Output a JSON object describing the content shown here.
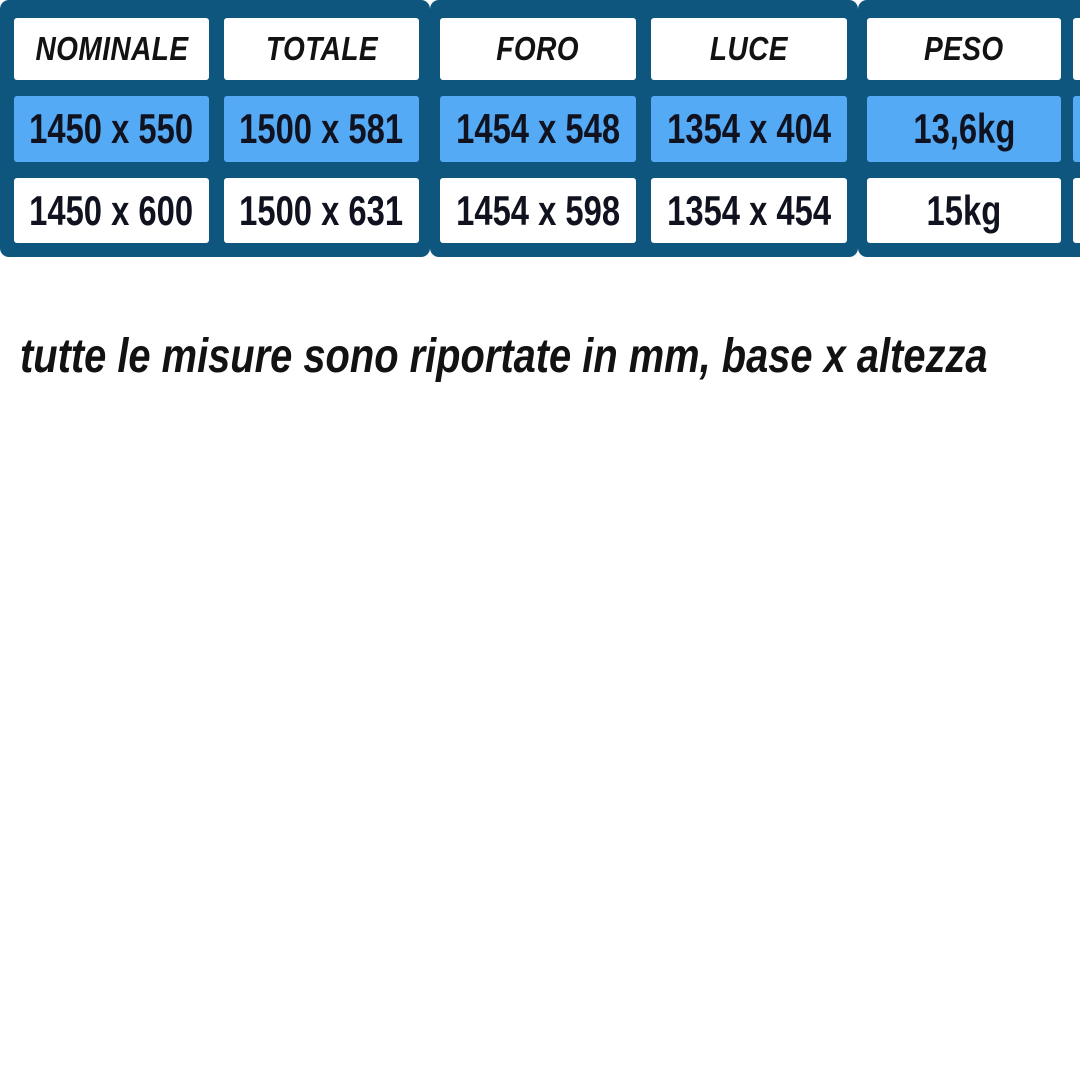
{
  "table": {
    "frames": [
      {
        "columns": [
          {
            "header": "NOMINALE",
            "rows": [
              "1450 x 550",
              "1450 x 600"
            ]
          },
          {
            "header": "TOTALE",
            "rows": [
              "1500 x 581",
              "1500 x 631"
            ]
          }
        ]
      },
      {
        "columns": [
          {
            "header": "FORO",
            "rows": [
              "1454 x 548",
              "1454 x 598"
            ]
          },
          {
            "header": "LUCE",
            "rows": [
              "1354 x 404",
              "1354 x 454"
            ]
          }
        ]
      },
      {
        "columns": [
          {
            "header": "PESO",
            "rows": [
              "13,6kg",
              "15kg"
            ]
          },
          {
            "header": "",
            "rows": [
              "",
              ""
            ]
          }
        ]
      }
    ]
  },
  "caption": "tutte le misure sono riportate in mm, base x altezza",
  "colors": {
    "frame_blue": "#0f567e",
    "row_highlight_blue": "#55aaf5",
    "cell_white": "#ffffff",
    "text_black": "#121212"
  }
}
